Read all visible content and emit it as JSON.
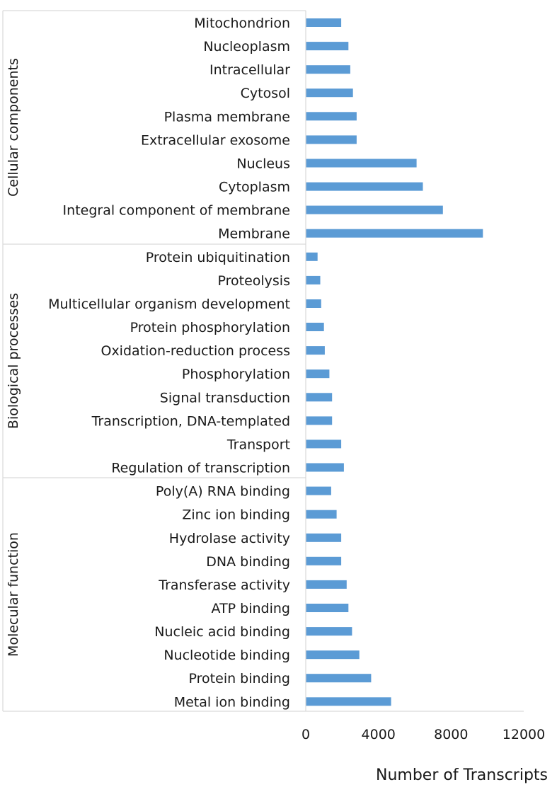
{
  "chart_data": {
    "type": "bar",
    "orientation": "horizontal",
    "xlabel": "Number of Transcripts",
    "xlim": [
      0,
      12000
    ],
    "xticks": [
      "0",
      "4000",
      "8000",
      "12000"
    ],
    "bar_color": "#5b9bd5",
    "grid": false,
    "groups": [
      {
        "name": "Cellular components",
        "categories": [
          "Mitochondrion",
          "Nucleoplasm",
          "Intracellular",
          "Cytosol",
          "Plasma membrane",
          "Extracellular exosome",
          "Nucleus",
          "Cytoplasm",
          "Integral component of membrane",
          "Membrane"
        ],
        "values": [
          1950,
          2350,
          2450,
          2600,
          2800,
          2800,
          6100,
          6450,
          7550,
          9750
        ]
      },
      {
        "name": "Biological processes",
        "categories": [
          "Protein ubiquitination",
          "Proteolysis",
          "Multicellular organism development",
          "Protein phosphorylation",
          "Oxidation-reduction process",
          "Phosphorylation",
          "Signal transduction",
          "Transcription, DNA-templated",
          "Transport",
          "Regulation of transcription"
        ],
        "values": [
          650,
          800,
          850,
          1000,
          1050,
          1300,
          1450,
          1450,
          1950,
          2100
        ]
      },
      {
        "name": "Molecular function",
        "categories": [
          "Poly(A) RNA binding",
          "Zinc ion binding",
          "Hydrolase activity",
          "DNA binding",
          "Transferase activity",
          "ATP binding",
          "Nucleic acid binding",
          "Nucleotide binding",
          "Protein binding",
          "Metal ion binding"
        ],
        "values": [
          1400,
          1700,
          1950,
          1950,
          2250,
          2350,
          2550,
          2950,
          3600,
          4700
        ]
      }
    ]
  }
}
